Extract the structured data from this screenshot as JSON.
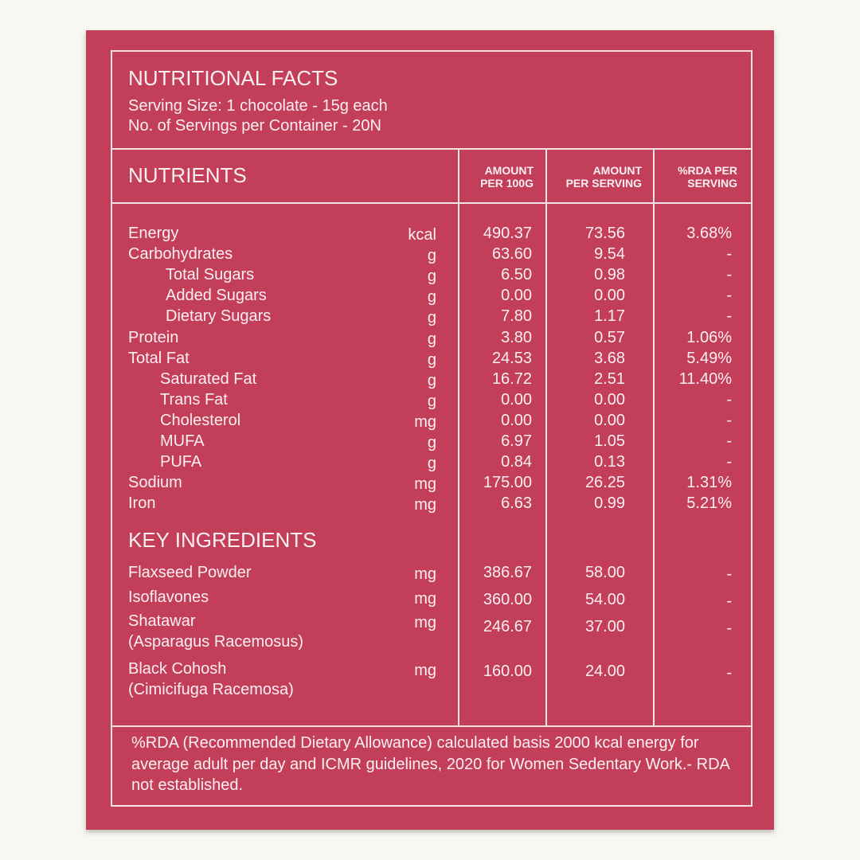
{
  "header": {
    "title": "NUTRITIONAL FACTS",
    "serving_size": "Serving Size: 1 chocolate - 15g each",
    "servings_per_container": "No. of Servings per Container - 20N"
  },
  "table": {
    "section_title": "NUTRIENTS",
    "columns": [
      "AMOUNT\nPER 100G",
      "AMOUNT\nPER SERVING",
      "%RDA PER\nSERVING"
    ],
    "columns_lines": [
      [
        "AMOUNT",
        "PER 100G"
      ],
      [
        "AMOUNT",
        "PER SERVING"
      ],
      [
        "%RDA PER",
        "SERVING"
      ]
    ],
    "nutrients": [
      {
        "name": "Energy",
        "indent": 0,
        "unit": "kcal",
        "per100g": "490.37",
        "per_serving": "73.56",
        "rda": "3.68%"
      },
      {
        "name": "Carbohydrates",
        "indent": 0,
        "unit": "g",
        "per100g": "63.60",
        "per_serving": "9.54",
        "rda": "-"
      },
      {
        "name": "Total Sugars",
        "indent": 2,
        "unit": "g",
        "per100g": "6.50",
        "per_serving": "0.98",
        "rda": "-"
      },
      {
        "name": "Added Sugars",
        "indent": 2,
        "unit": "g",
        "per100g": "0.00",
        "per_serving": "0.00",
        "rda": "-"
      },
      {
        "name": "Dietary Sugars",
        "indent": 2,
        "unit": "g",
        "per100g": "7.80",
        "per_serving": "1.17",
        "rda": "-"
      },
      {
        "name": "Protein",
        "indent": 0,
        "unit": "g",
        "per100g": "3.80",
        "per_serving": "0.57",
        "rda": "1.06%"
      },
      {
        "name": "Total Fat",
        "indent": 0,
        "unit": "g",
        "per100g": "24.53",
        "per_serving": "3.68",
        "rda": "5.49%"
      },
      {
        "name": "Saturated Fat",
        "indent": 1,
        "unit": "g",
        "per100g": "16.72",
        "per_serving": "2.51",
        "rda": "11.40%"
      },
      {
        "name": "Trans Fat",
        "indent": 1,
        "unit": "g",
        "per100g": "0.00",
        "per_serving": "0.00",
        "rda": "-"
      },
      {
        "name": "Cholesterol",
        "indent": 1,
        "unit": "mg",
        "per100g": "0.00",
        "per_serving": "0.00",
        "rda": "-"
      },
      {
        "name": "MUFA",
        "indent": 1,
        "unit": "g",
        "per100g": "6.97",
        "per_serving": "1.05",
        "rda": "-"
      },
      {
        "name": "PUFA",
        "indent": 1,
        "unit": "g",
        "per100g": "0.84",
        "per_serving": "0.13",
        "rda": "-"
      },
      {
        "name": "Sodium",
        "indent": 0,
        "unit": "mg",
        "per100g": "175.00",
        "per_serving": "26.25",
        "rda": "1.31%"
      },
      {
        "name": "Iron",
        "indent": 0,
        "unit": "mg",
        "per100g": "6.63",
        "per_serving": "0.99",
        "rda": "5.21%"
      }
    ],
    "key_ingredients_title": "KEY INGREDIENTS",
    "key_ingredients": [
      {
        "name": "Flaxseed Powder",
        "name2": "",
        "unit": "mg",
        "per100g": "386.67",
        "per_serving": "58.00",
        "rda": "-"
      },
      {
        "name": "Isoflavones",
        "name2": "",
        "unit": "mg",
        "per100g": "360.00",
        "per_serving": "54.00",
        "rda": "-"
      },
      {
        "name": "Shatawar",
        "name2": "(Asparagus Racemosus)",
        "unit": "mg",
        "per100g": "246.67",
        "per_serving": "37.00",
        "rda": "-"
      },
      {
        "name": "Black Cohosh",
        "name2": "(Cimicifuga Racemosa)",
        "unit": "mg",
        "per100g": "160.00",
        "per_serving": "24.00",
        "rda": "-"
      }
    ]
  },
  "footer": {
    "note": "%RDA (Recommended Dietary Allowance) calculated basis 2000 kcal energy for average adult per day and ICMR guidelines, 2020 for Women Sedentary Work.- RDA not established."
  },
  "colors": {
    "background": "#f8f7f2",
    "panel": "#c23e59",
    "text": "#fbeff2"
  }
}
